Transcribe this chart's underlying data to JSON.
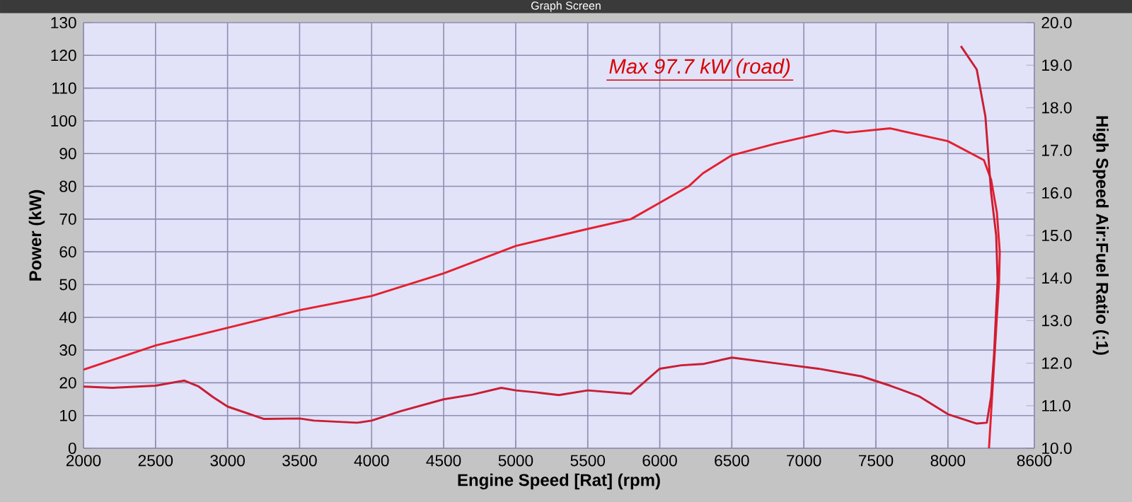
{
  "chart_data": {
    "type": "line",
    "title": "Graph Screen",
    "xlabel": "Engine Speed [Rat] (rpm)",
    "ylabel": "Power (kW)",
    "y2label": "High Speed Air:Fuel Ratio (:1)",
    "annotations": [
      "Max 97.7 kW (road)"
    ],
    "xlim": [
      2000,
      8600
    ],
    "xticks": [
      2000,
      2500,
      3000,
      3500,
      4000,
      4500,
      5000,
      5500,
      6000,
      6500,
      7000,
      7500,
      8000,
      8600
    ],
    "ylim": [
      0,
      130
    ],
    "yticks": [
      0,
      10,
      20,
      30,
      40,
      50,
      60,
      70,
      80,
      90,
      100,
      110,
      120,
      130
    ],
    "y2lim": [
      10,
      20
    ],
    "y2ticks": [
      {
        "value": 10,
        "label": "10.0"
      },
      {
        "value": 11,
        "label": "11.0"
      },
      {
        "value": 12,
        "label": "12.0"
      },
      {
        "value": 13,
        "label": "13.0"
      },
      {
        "value": 14,
        "label": "14.0"
      },
      {
        "value": 15,
        "label": "15.0"
      },
      {
        "value": 16,
        "label": "16.0"
      },
      {
        "value": 17,
        "label": "17.0"
      },
      {
        "value": 18,
        "label": "18.0"
      },
      {
        "value": 19,
        "label": "19.0"
      },
      {
        "value": 20,
        "label": "20.0"
      }
    ],
    "grid": true,
    "series": [
      {
        "color": "#e4202e",
        "x": [
          2000,
          2500,
          3000,
          3500,
          4000,
          4500,
          5000,
          5500,
          5800,
          6000,
          6200,
          6300,
          6500,
          6800,
          7000,
          7200,
          7300,
          7600,
          8000,
          8250,
          8300,
          8340,
          8360,
          8355,
          8285
        ],
        "values": [
          24,
          31.4,
          36.8,
          42.2,
          46.5,
          53.4,
          61.8,
          67,
          70,
          75,
          80,
          84,
          89.5,
          93,
          95,
          97,
          96.4,
          97.7,
          93.8,
          88,
          82,
          72,
          60,
          51,
          0
        ]
      },
      {
        "color": "#c81e34",
        "axis": "y2",
        "x": [
          2000,
          2200,
          2500,
          2700,
          2800,
          2900,
          3000,
          3250,
          3500,
          3600,
          3900,
          4000,
          4200,
          4500,
          4700,
          4900,
          5000,
          5150,
          5300,
          5500,
          5800,
          6000,
          6150,
          6300,
          6500,
          6800,
          7100,
          7400,
          7600,
          7800,
          8000,
          8200,
          8270,
          8300,
          8320,
          8345,
          8335,
          8300,
          8260,
          8200,
          8090
        ],
        "values": [
          11.45,
          11.42,
          11.47,
          11.59,
          11.45,
          11.2,
          10.98,
          10.69,
          10.7,
          10.65,
          10.6,
          10.65,
          10.87,
          11.15,
          11.26,
          11.42,
          11.36,
          11.31,
          11.25,
          11.36,
          11.28,
          11.87,
          11.95,
          11.98,
          12.13,
          12.0,
          11.87,
          11.69,
          11.47,
          11.22,
          10.8,
          10.58,
          10.6,
          11.22,
          12.2,
          13.95,
          15.0,
          16.0,
          17.8,
          18.9,
          19.45
        ]
      }
    ]
  }
}
